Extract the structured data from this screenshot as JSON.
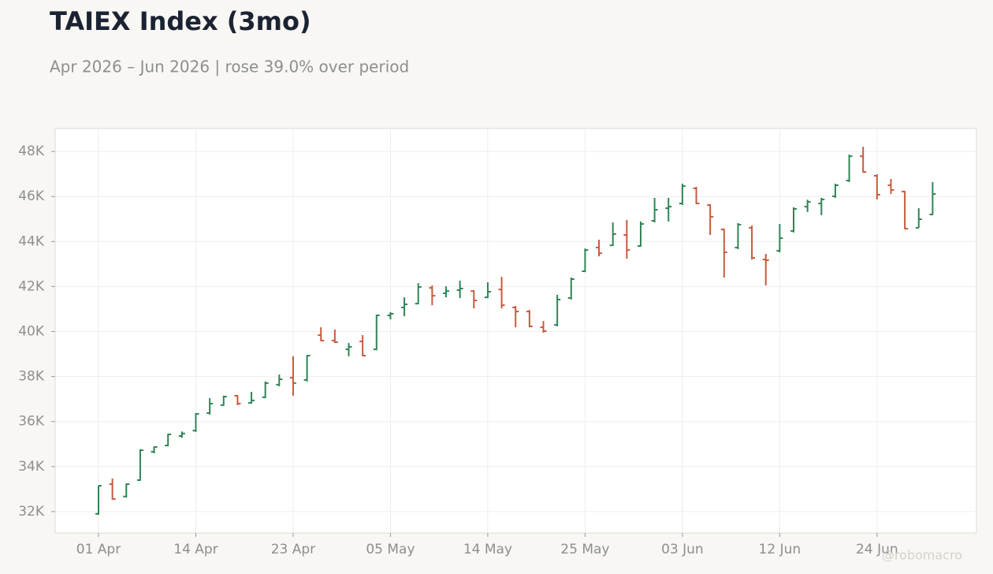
{
  "chart_data": {
    "type": "ohlc",
    "title": "TAIEX Index (3mo)",
    "subtitle": "Apr 2026 – Jun 2026 | rose 39.0% over period",
    "watermark": "@robomacro",
    "categories": [
      "01 Apr",
      null,
      null,
      null,
      null,
      null,
      null,
      "14 Apr",
      null,
      null,
      null,
      null,
      null,
      null,
      "23 Apr",
      null,
      null,
      null,
      null,
      null,
      null,
      "05 May",
      null,
      null,
      null,
      null,
      null,
      null,
      "14 May",
      null,
      null,
      null,
      null,
      null,
      null,
      "25 May",
      null,
      null,
      null,
      null,
      null,
      null,
      "03 Jun",
      null,
      null,
      null,
      null,
      null,
      null,
      "12 Jun",
      null,
      null,
      null,
      null,
      null,
      null,
      "24 Jun",
      null,
      null,
      null,
      null
    ],
    "open": [
      31900,
      33220,
      32670,
      33400,
      34660,
      34940,
      35360,
      35600,
      36380,
      36730,
      37150,
      36830,
      37080,
      37640,
      37950,
      37850,
      39840,
      39600,
      39210,
      39560,
      39210,
      40720,
      41070,
      41240,
      41940,
      41700,
      41840,
      41800,
      41520,
      41870,
      41070,
      40890,
      40190,
      40300,
      41490,
      42680,
      43730,
      43830,
      44290,
      43800,
      44920,
      45480,
      45690,
      46360,
      45620,
      44540,
      43730,
      44610,
      43200,
      43590,
      44470,
      45550,
      45690,
      46010,
      46710,
      47790,
      46920,
      46500,
      46220,
      44610,
      45200
    ],
    "high": [
      33150,
      33470,
      33250,
      34770,
      34900,
      35460,
      35560,
      36380,
      37040,
      37150,
      37180,
      37320,
      37780,
      38090,
      38900,
      38960,
      40190,
      40090,
      39490,
      39840,
      40750,
      40860,
      41520,
      42150,
      42050,
      42010,
      42260,
      41830,
      42190,
      42430,
      41140,
      40960,
      40470,
      41630,
      42400,
      43690,
      44080,
      44850,
      44960,
      44890,
      45940,
      45940,
      46570,
      46430,
      45660,
      44570,
      44820,
      44710,
      43450,
      44780,
      45520,
      45860,
      45940,
      46570,
      47860,
      48210,
      46990,
      46780,
      46250,
      45480,
      46640
    ],
    "low": [
      31860,
      32530,
      32630,
      33370,
      34590,
      34900,
      35280,
      35540,
      36310,
      36700,
      36730,
      36800,
      37040,
      37570,
      37150,
      37780,
      39570,
      39490,
      38900,
      38900,
      39170,
      40540,
      40680,
      41210,
      41170,
      41520,
      41490,
      41030,
      41490,
      41030,
      40190,
      40190,
      39950,
      40230,
      41420,
      42640,
      43340,
      43800,
      43240,
      43770,
      44850,
      44890,
      45620,
      45660,
      44290,
      42400,
      43660,
      43200,
      42050,
      43520,
      44400,
      45310,
      45170,
      45940,
      46640,
      47060,
      45870,
      46110,
      44540,
      44610,
      45170
    ],
    "close": [
      33150,
      32560,
      33220,
      34730,
      34870,
      35430,
      35470,
      36340,
      36800,
      37110,
      36800,
      36940,
      37710,
      37880,
      37710,
      38930,
      39600,
      39530,
      39320,
      38930,
      40720,
      40790,
      41210,
      41980,
      41590,
      41800,
      41910,
      41380,
      41770,
      41170,
      40890,
      40230,
      40020,
      41420,
      42330,
      43620,
      43480,
      44330,
      43620,
      44780,
      45410,
      45550,
      46460,
      45690,
      45100,
      43520,
      44750,
      43270,
      43170,
      44150,
      45450,
      45760,
      45870,
      46500,
      47790,
      47090,
      46080,
      46290,
      44570,
      44990,
      46110
    ],
    "up_color": "#2e8555",
    "down_color": "#c85a3c",
    "ylim": [
      31050,
      49020
    ],
    "yticks": [
      {
        "value": 32000,
        "label": "32K"
      },
      {
        "value": 34000,
        "label": "34K"
      },
      {
        "value": 36000,
        "label": "36K"
      },
      {
        "value": 38000,
        "label": "38K"
      },
      {
        "value": 40000,
        "label": "40K"
      },
      {
        "value": 42000,
        "label": "42K"
      },
      {
        "value": 44000,
        "label": "44K"
      },
      {
        "value": 46000,
        "label": "46K"
      },
      {
        "value": 48000,
        "label": "48K"
      }
    ],
    "grid": true
  }
}
